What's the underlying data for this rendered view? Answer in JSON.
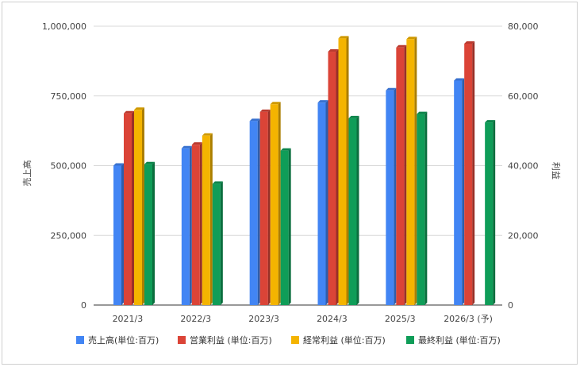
{
  "chart_data": {
    "type": "bar",
    "categories": [
      "2021/3",
      "2022/3",
      "2023/3",
      "2024/3",
      "2025/3",
      "2026/3 (予)"
    ],
    "left_axis": {
      "label": "売上高",
      "ylim": [
        0,
        1000000
      ],
      "ticks": [
        "0",
        "250,000",
        "500,000",
        "750,000",
        "1,000,000"
      ]
    },
    "right_axis": {
      "label": "利益",
      "ylim": [
        0,
        80000
      ],
      "ticks": [
        "0",
        "20,000",
        "40,000",
        "60,000",
        "80,000"
      ]
    },
    "series": [
      {
        "name": "売上高(単位:百万)",
        "axis": "left",
        "color": "#4285f4",
        "values": [
          500000,
          562000,
          660000,
          726000,
          770000,
          805000
        ]
      },
      {
        "name": "営業利益 (単位:百万)",
        "axis": "right",
        "color": "#db4437",
        "values": [
          55000,
          46000,
          55400,
          72700,
          73900,
          75000
        ]
      },
      {
        "name": "経常利益 (単位:百万)",
        "axis": "right",
        "color": "#f4b400",
        "values": [
          56000,
          48600,
          57600,
          76500,
          76300,
          null
        ]
      },
      {
        "name": "最終利益 (単位:百万)",
        "axis": "right",
        "color": "#0f9d58",
        "values": [
          40400,
          34800,
          44300,
          53600,
          54800,
          52400
        ]
      }
    ],
    "grid": true,
    "legend": "bottom",
    "style": "3d-bar"
  }
}
